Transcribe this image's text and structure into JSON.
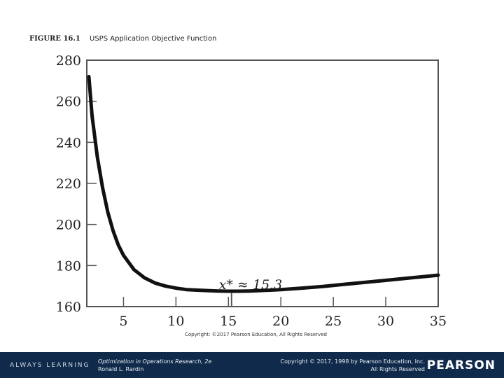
{
  "figure": {
    "label": "FIGURE 16.1",
    "caption": "USPS Application Objective Function"
  },
  "chart_data": {
    "type": "line",
    "title": "",
    "xlabel": "",
    "ylabel": "",
    "xlim": [
      1.5,
      35
    ],
    "ylim": [
      160,
      280
    ],
    "x_ticks": [
      5,
      10,
      15,
      20,
      25,
      30,
      35
    ],
    "y_ticks": [
      160,
      180,
      200,
      220,
      240,
      260,
      280
    ],
    "grid": false,
    "series": [
      {
        "x": [
          1.7,
          2,
          2.5,
          3,
          3.5,
          4,
          4.5,
          5,
          6,
          7,
          8,
          9,
          10,
          11,
          12,
          13,
          14,
          15,
          16,
          17,
          18,
          19,
          20,
          22,
          24,
          26,
          28,
          30,
          32,
          34,
          35
        ],
        "values": [
          272,
          253,
          233,
          218,
          206,
          197,
          190,
          185,
          178,
          174,
          171.5,
          170,
          169,
          168.3,
          168,
          167.8,
          167.6,
          167.5,
          167.5,
          167.6,
          167.8,
          168,
          168.3,
          169,
          169.8,
          170.8,
          171.8,
          172.8,
          173.8,
          174.8,
          175.3
        ],
        "color": "#111111"
      }
    ],
    "annotations": [
      {
        "text": "x* ≈ 15.3",
        "x": 15.3,
        "y": 176
      }
    ],
    "optimum_marker": {
      "x": 15.3
    }
  },
  "credit": "Copyright: ©2017 Pearson Education, All Rights Reserved",
  "footer": {
    "tagline": "ALWAYS LEARNING",
    "book_title": "Optimization in Operations Research, 2e",
    "book_author": "Ronald L. Rardin",
    "copyright_line1": "Copyright © 2017, 1998 by Pearson Education, Inc.",
    "copyright_line2": "All Rights Reserved",
    "brand": "PEARSON"
  },
  "colors": {
    "footer_bg": "#0f2a4a",
    "curve": "#111111"
  }
}
